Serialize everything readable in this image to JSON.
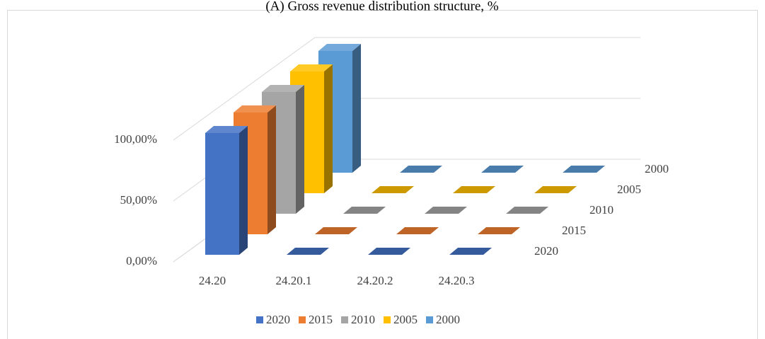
{
  "chart_data": {
    "type": "bar3d",
    "title": "(A) Gross revenue distribution structure, %",
    "categories": [
      "24.20",
      "24.20.1",
      "24.20.2",
      "24.20.3"
    ],
    "series": [
      {
        "name": "2020",
        "color": "#4472c4",
        "values": [
          100,
          0,
          0,
          0
        ]
      },
      {
        "name": "2015",
        "color": "#ed7d31",
        "values": [
          100,
          0,
          0,
          0
        ]
      },
      {
        "name": "2010",
        "color": "#a5a5a5",
        "values": [
          100,
          0,
          0,
          0
        ]
      },
      {
        "name": "2005",
        "color": "#ffc000",
        "values": [
          100,
          0,
          0,
          0
        ]
      },
      {
        "name": "2000",
        "color": "#5b9bd5",
        "values": [
          100,
          0,
          0,
          0
        ]
      }
    ],
    "ylim": [
      0,
      100
    ],
    "yticks": [
      {
        "value": 0,
        "label": "0,00%"
      },
      {
        "value": 50,
        "label": "50,00%"
      },
      {
        "value": 100,
        "label": "100,00%"
      }
    ],
    "grid": true,
    "legend": "bottom"
  }
}
